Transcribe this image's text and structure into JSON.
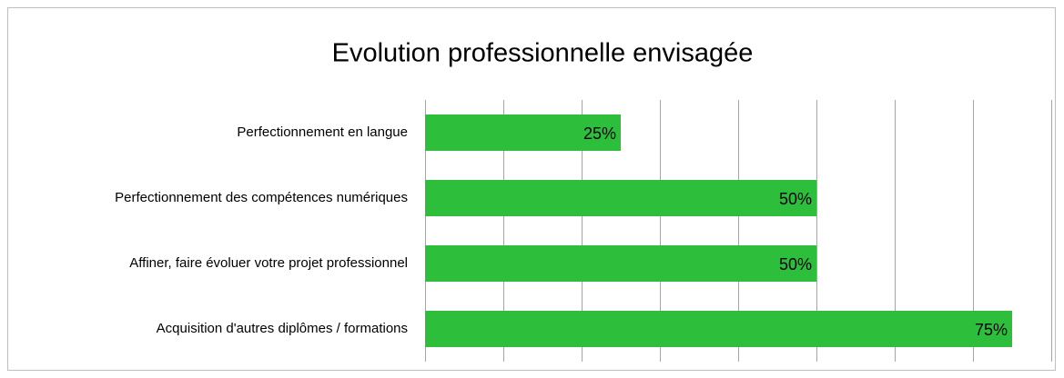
{
  "chart_data": {
    "type": "barh",
    "title": "Evolution professionnelle envisagée",
    "categories": [
      "Perfectionnement en langue",
      "Perfectionnement des compétences numériques",
      "Affiner, faire évoluer votre projet professionnel",
      "Acquisition d'autres diplômes / formations"
    ],
    "values": [
      25,
      50,
      50,
      75
    ],
    "value_labels": [
      "25%",
      "50%",
      "50%",
      "75%"
    ],
    "color": "#2dbf3c",
    "xlim": [
      0,
      80
    ],
    "xticks": [
      0,
      10,
      20,
      30,
      40,
      50,
      60,
      70,
      80
    ],
    "grid": true
  }
}
